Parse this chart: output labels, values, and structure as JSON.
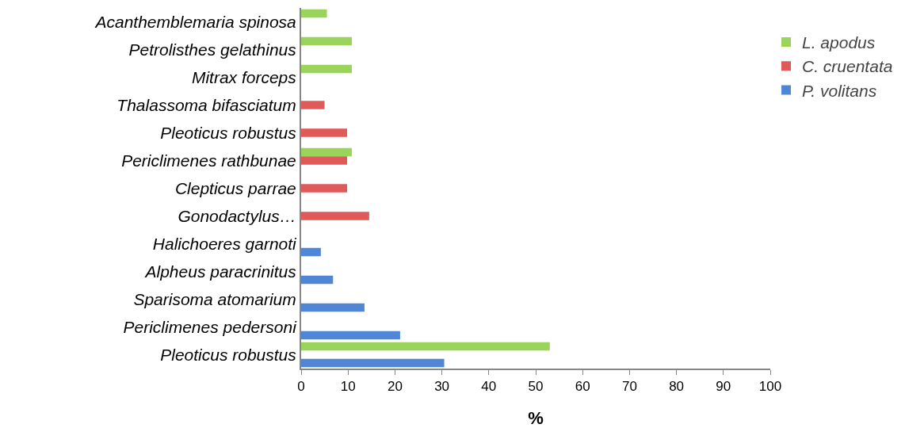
{
  "chart_data": {
    "type": "bar",
    "orientation": "horizontal",
    "xlabel": "%",
    "categories": [
      "Acanthemblemaria spinosa",
      "Petrolisthes gelathinus",
      "Mitrax forceps",
      "Thalassoma bifasciatum",
      "Pleoticus robustus",
      "Periclimenes rathbunae",
      "Clepticus parrae",
      "Gonodactylus…",
      "Halichoeres garnoti",
      "Alpheus paracrinitus",
      "Sparisoma atomarium",
      "Periclimenes pedersoni",
      "Pleoticus robustus"
    ],
    "series": [
      {
        "name": "L. apodus",
        "color": "#9bd45a",
        "values": [
          5.5,
          10.8,
          10.8,
          null,
          null,
          10.8,
          null,
          null,
          null,
          null,
          null,
          null,
          53
        ]
      },
      {
        "name": "C. cruentata",
        "color": "#e05a5a",
        "values": [
          null,
          null,
          null,
          5,
          9.8,
          9.8,
          9.8,
          14.5,
          null,
          null,
          null,
          null,
          null
        ]
      },
      {
        "name": "P. volitans",
        "color": "#4f86d6",
        "values": [
          null,
          null,
          null,
          null,
          null,
          null,
          null,
          null,
          4.2,
          6.8,
          13.5,
          21.1,
          30.5
        ]
      }
    ],
    "xlim": [
      0,
      100
    ],
    "xticks": [
      0,
      10,
      20,
      30,
      40,
      50,
      60,
      70,
      80,
      90,
      100
    ],
    "grid": false,
    "legend": "right"
  }
}
